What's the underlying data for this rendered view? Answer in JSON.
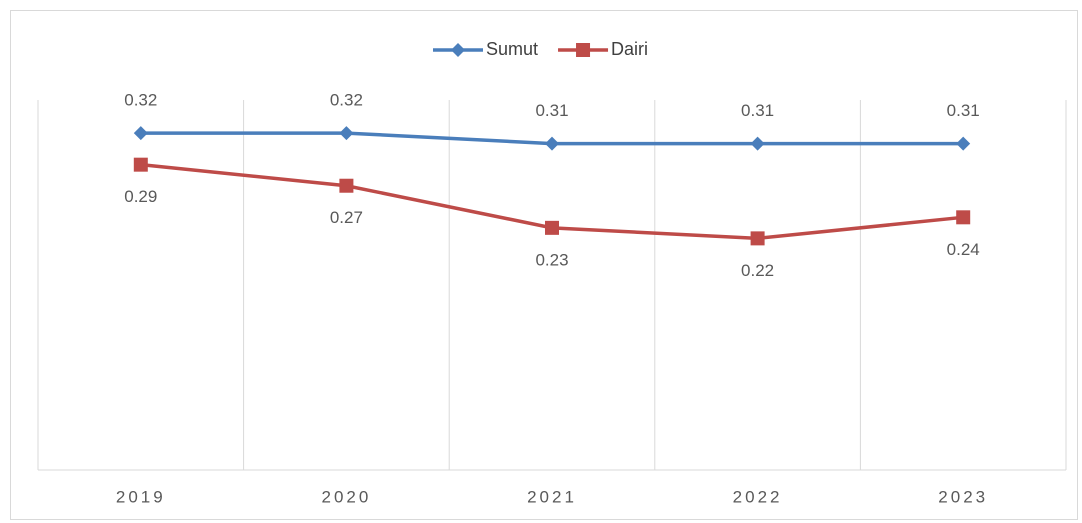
{
  "chart_data": {
    "type": "line",
    "categories": [
      "2019",
      "2020",
      "2021",
      "2022",
      "2023"
    ],
    "series": [
      {
        "name": "Sumut",
        "color": "#4a7ebb",
        "marker": "diamond",
        "values": [
          0.32,
          0.32,
          0.31,
          0.31,
          0.31
        ]
      },
      {
        "name": "Dairi",
        "color": "#be4b48",
        "marker": "square",
        "values": [
          0.29,
          0.27,
          0.23,
          0.22,
          0.24
        ]
      }
    ],
    "ylim": [
      0,
      0.35
    ],
    "legend": "top"
  }
}
